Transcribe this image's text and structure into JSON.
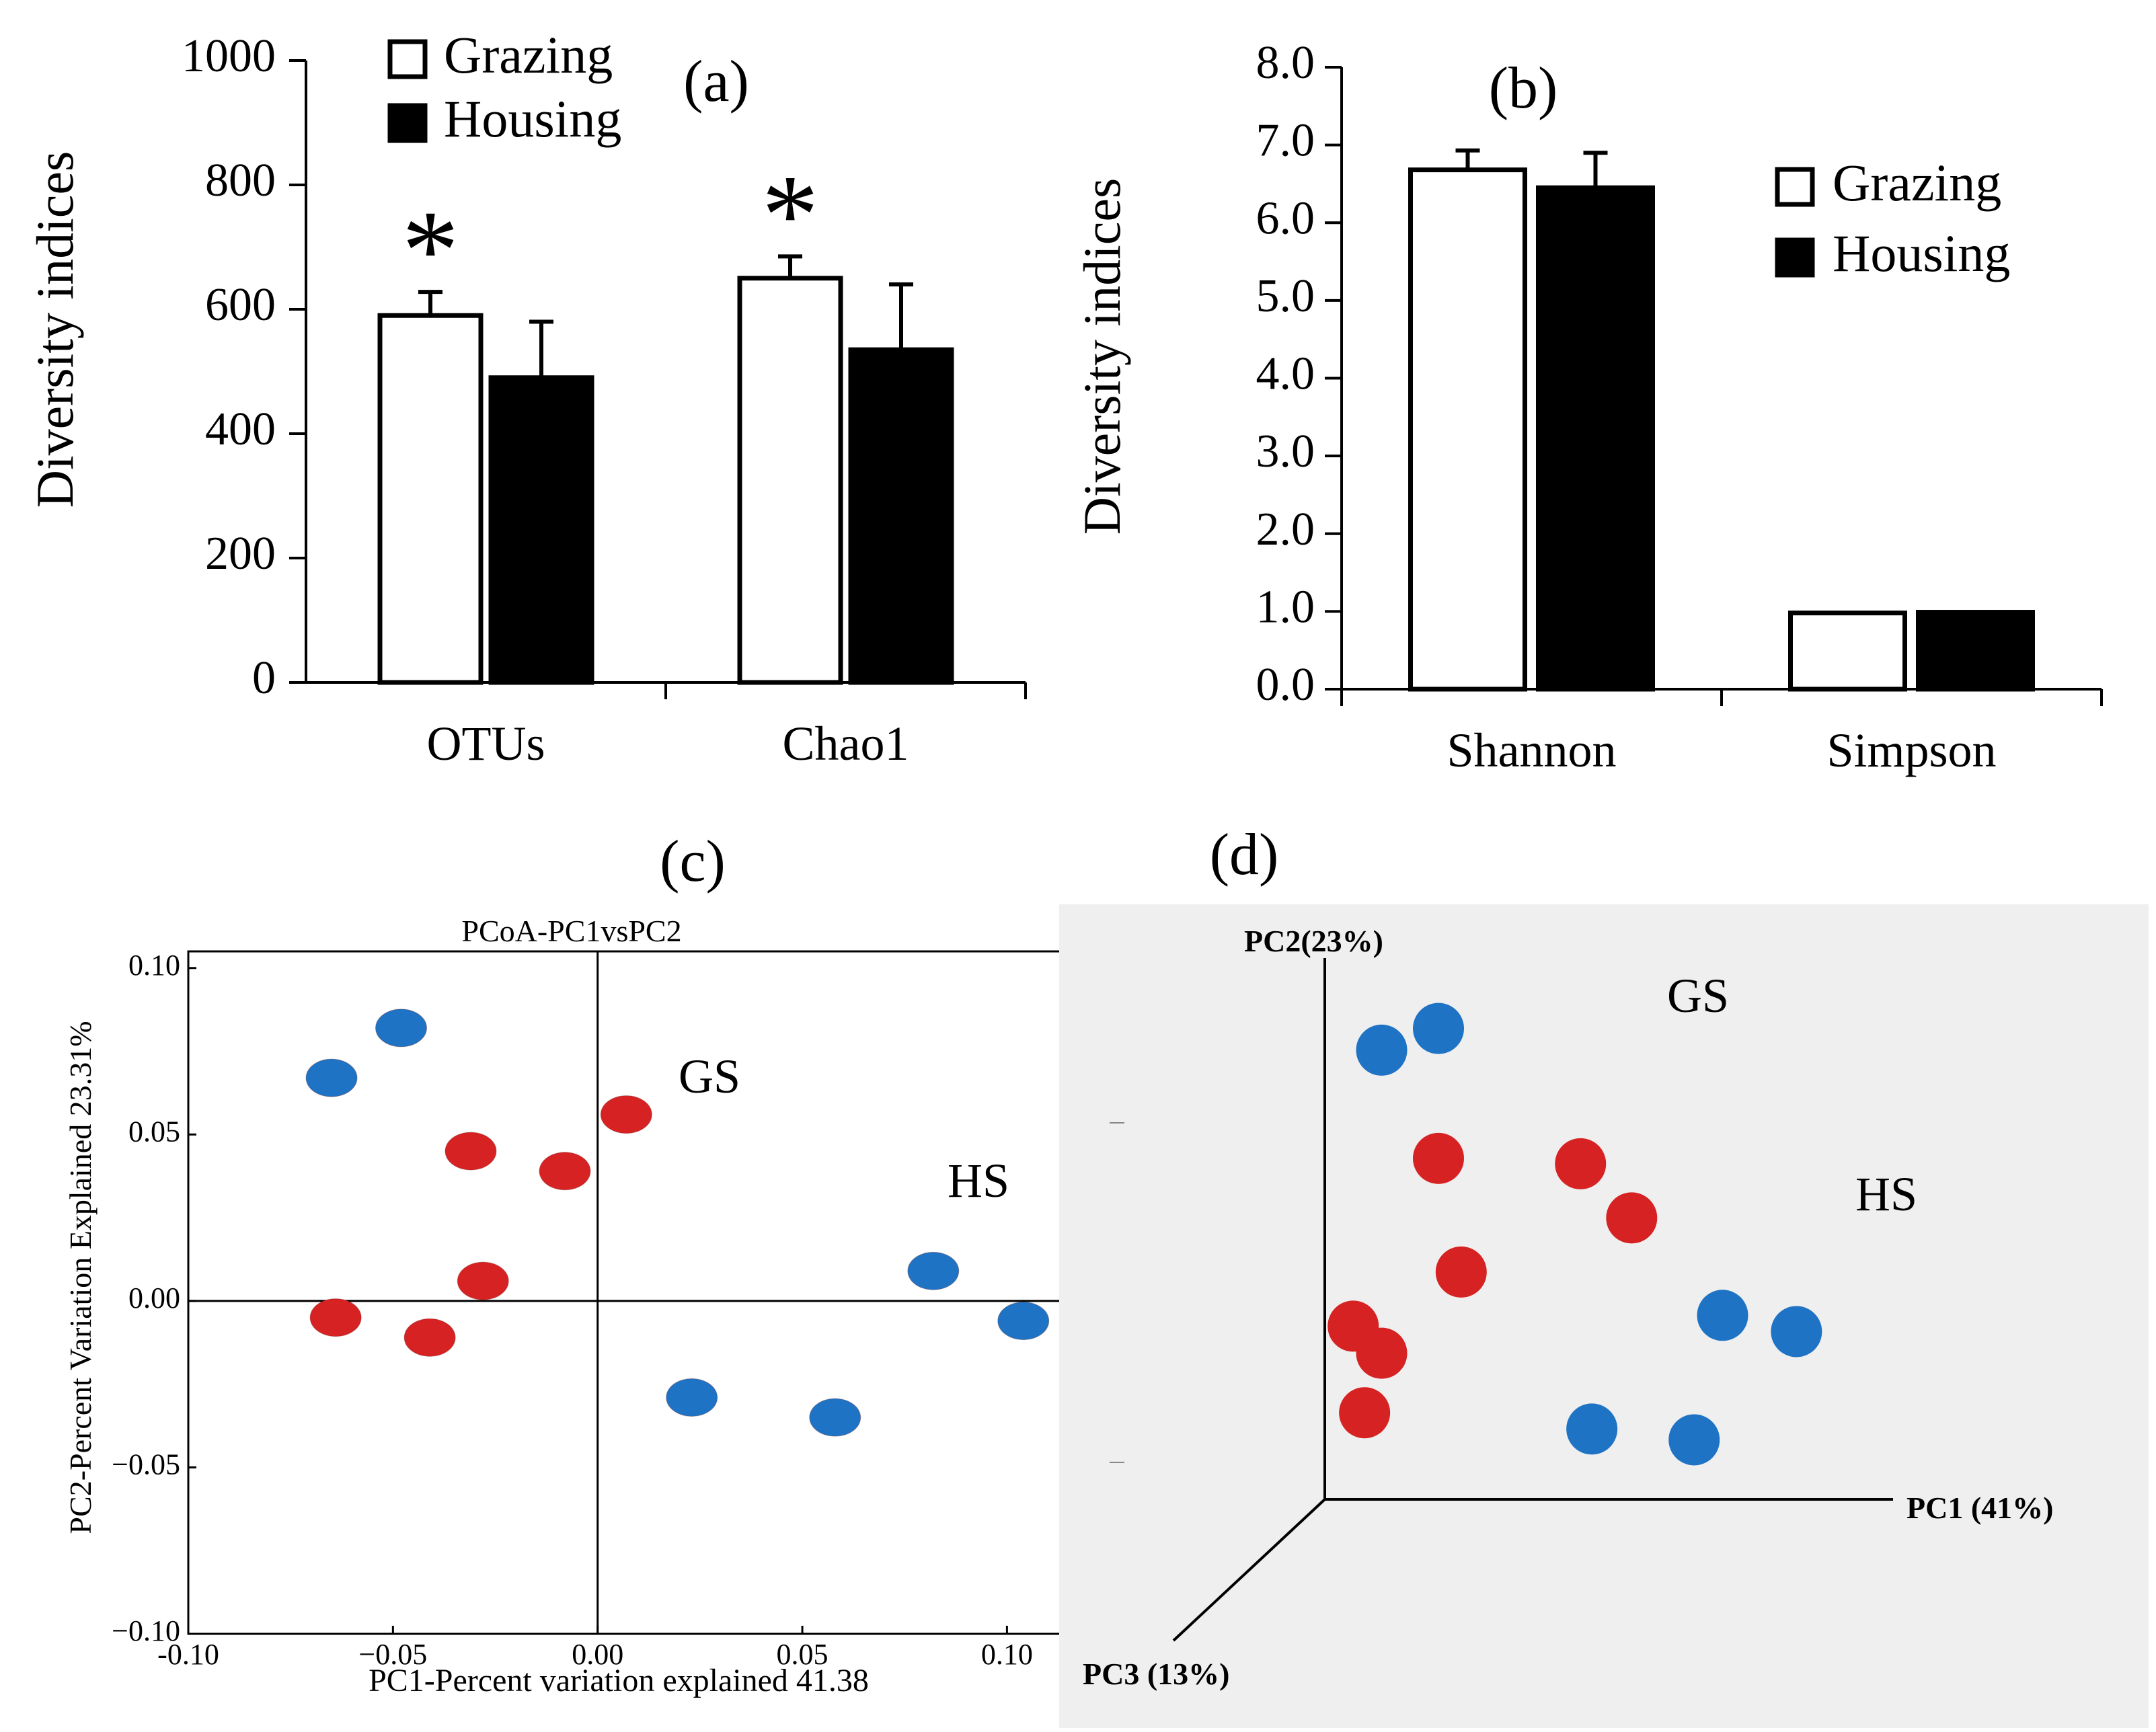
{
  "figure": {
    "colors": {
      "grazing_fill": "#ffffff",
      "housing_fill": "#000000",
      "gs_point": "#d62222",
      "hs_point": "#1f73c4",
      "panel_d_bg": "#efefef"
    }
  },
  "chart_data": [
    {
      "panel": "(a)",
      "type": "bar",
      "ylabel": "Diversity indices",
      "ylim": [
        0,
        1000
      ],
      "yticks": [
        "0",
        "200",
        "400",
        "600",
        "800",
        "1000"
      ],
      "categories": [
        "OTUs",
        "Chao1"
      ],
      "series": [
        {
          "name": "Grazing",
          "values": [
            590,
            650
          ],
          "errors": [
            38,
            35
          ],
          "significance": [
            "*",
            "*"
          ]
        },
        {
          "name": "Housing",
          "values": [
            490,
            535
          ],
          "errors": [
            90,
            105
          ],
          "significance": [
            "",
            ""
          ]
        }
      ],
      "legend": [
        "Grazing",
        "Housing"
      ],
      "legend_position": "top-left"
    },
    {
      "panel": "(b)",
      "type": "bar",
      "ylabel": "Diversity indices",
      "ylim": [
        0,
        8
      ],
      "yticks": [
        "0.0",
        "1.0",
        "2.0",
        "3.0",
        "4.0",
        "5.0",
        "6.0",
        "7.0",
        "8.0"
      ],
      "categories": [
        "Shannon",
        "Simpson"
      ],
      "series": [
        {
          "name": "Grazing",
          "values": [
            6.68,
            0.98
          ],
          "errors": [
            0.25,
            0
          ]
        },
        {
          "name": "Housing",
          "values": [
            6.45,
            0.99
          ],
          "errors": [
            0.45,
            0
          ]
        }
      ],
      "legend": [
        "Grazing",
        "Housing"
      ],
      "legend_position": "right"
    },
    {
      "panel": "(c)",
      "type": "scatter",
      "title": "PCoA-PC1vsPC2",
      "xlabel": "PC1-Percent variation explained  41.38",
      "ylabel": "PC2-Percent Variation Explained 23.31%",
      "xlim": [
        -0.1,
        0.13
      ],
      "ylim": [
        -0.1,
        0.105
      ],
      "xticks": [
        "-0.10",
        "−0.05",
        "0.00",
        "0.05",
        "0.10"
      ],
      "yticks": [
        "−0.10",
        "−0.05",
        "0.00",
        "0.05",
        "0.10"
      ],
      "groups": [
        {
          "name": "GS",
          "points": [
            [
              -0.031,
              0.045
            ],
            [
              -0.008,
              0.039
            ],
            [
              0.007,
              0.056
            ],
            [
              -0.028,
              0.006
            ],
            [
              -0.064,
              -0.005
            ],
            [
              -0.041,
              -0.011
            ]
          ]
        },
        {
          "name": "HS",
          "points": [
            [
              -0.065,
              0.067
            ],
            [
              -0.048,
              0.082
            ],
            [
              0.082,
              0.009
            ],
            [
              0.104,
              -0.006
            ],
            [
              0.023,
              -0.029
            ],
            [
              0.058,
              -0.035
            ]
          ]
        }
      ]
    },
    {
      "panel": "(d)",
      "type": "scatter",
      "projection": "3d",
      "axis_labels": [
        "PC1 (41%)",
        "PC2(23%)",
        "PC3 (13%)"
      ],
      "groups": [
        {
          "name": "GS",
          "points": [
            [
              0.45,
              0.62
            ],
            [
              0.54,
              0.52
            ],
            [
              0.2,
              0.63
            ],
            [
              0.24,
              0.42
            ],
            [
              0.05,
              0.32
            ],
            [
              0.1,
              0.27
            ],
            [
              0.07,
              0.16
            ]
          ]
        },
        {
          "name": "HS",
          "points": [
            [
              0.1,
              0.83
            ],
            [
              0.2,
              0.87
            ],
            [
              0.7,
              0.34
            ],
            [
              0.83,
              0.31
            ],
            [
              0.47,
              0.13
            ],
            [
              0.65,
              0.11
            ]
          ]
        }
      ]
    }
  ]
}
